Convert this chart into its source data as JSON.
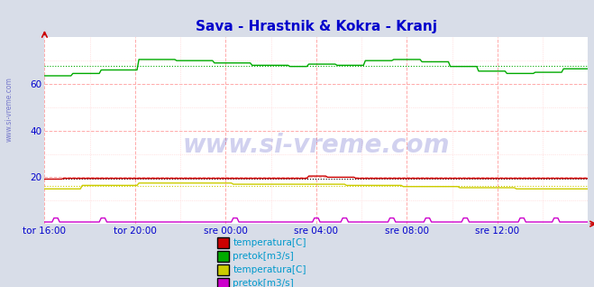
{
  "title": "Sava - Hrastnik & Kokra - Kranj",
  "title_color": "#0000cc",
  "title_fontsize": 11,
  "bg_color": "#d8dde8",
  "plot_bg_color": "#ffffff",
  "grid_major_color": "#ffaaaa",
  "grid_minor_color": "#ffdddd",
  "xlabel_color": "#0000cc",
  "ylabel_color": "#0000cc",
  "watermark": "www.si-vreme.com",
  "watermark_color": "#0000aa",
  "watermark_alpha": 0.18,
  "ylim": [
    0,
    80
  ],
  "yticks": [
    20,
    40,
    60
  ],
  "xlim": [
    0,
    288
  ],
  "xtick_labels": [
    "tor 16:00",
    "tor 20:00",
    "sre 00:00",
    "sre 04:00",
    "sre 08:00",
    "sre 12:00"
  ],
  "xtick_positions": [
    0,
    48,
    96,
    144,
    192,
    240
  ],
  "sava_color_temp": "#cc0000",
  "sava_color_pretok": "#00aa00",
  "kokra_color_temp": "#cccc00",
  "kokra_color_pretok": "#cc00cc",
  "mean_line_color_temp": "#000000",
  "legend_items": [
    {
      "label": "temperatura[C]",
      "color": "#cc0000"
    },
    {
      "label": "pretok[m3/s]",
      "color": "#00aa00"
    },
    {
      "label": "temperatura[C]",
      "color": "#cccc00"
    },
    {
      "label": "pretok[m3/s]",
      "color": "#cc00cc"
    }
  ]
}
